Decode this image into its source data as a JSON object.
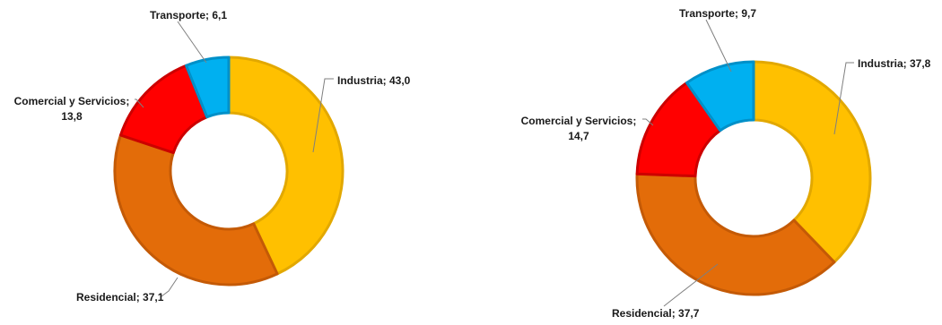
{
  "colors": {
    "industria": "#FFC000",
    "residencial": "#E36C09",
    "comercial": "#FF0000",
    "transporte": "#00B0F0",
    "leader": "#7f7f7f"
  },
  "chart_data": [
    {
      "type": "pie",
      "title": "",
      "hole": true,
      "slices": [
        {
          "name": "Industria",
          "value": 43.0,
          "label": "Industria; 43,0",
          "color": "#FFC000",
          "border": "#E2A800"
        },
        {
          "name": "Residencial",
          "value": 37.1,
          "label": "Residencial; 37,1",
          "color": "#E36C09",
          "border": "#C45A06"
        },
        {
          "name": "Comercial y Servicios",
          "value": 13.8,
          "label_lines": [
            "Comercial y Servicios;",
            "13,8"
          ],
          "color": "#FF0000",
          "border": "#CC0000"
        },
        {
          "name": "Transporte",
          "value": 6.1,
          "label": "Transporte; 6,1",
          "color": "#00B0F0",
          "border": "#0090C8"
        }
      ]
    },
    {
      "type": "pie",
      "title": "",
      "hole": true,
      "slices": [
        {
          "name": "Industria",
          "value": 37.8,
          "label": "Industria; 37,8",
          "color": "#FFC000",
          "border": "#E2A800"
        },
        {
          "name": "Residencial",
          "value": 37.7,
          "label": "Residencial; 37,7",
          "color": "#E36C09",
          "border": "#C45A06"
        },
        {
          "name": "Comercial y Servicios",
          "value": 14.7,
          "label_lines": [
            "Comercial y Servicios;",
            "14,7"
          ],
          "color": "#FF0000",
          "border": "#CC0000"
        },
        {
          "name": "Transporte",
          "value": 9.7,
          "label": "Transporte; 9,7",
          "color": "#00B0F0",
          "border": "#0090C8"
        }
      ]
    }
  ]
}
